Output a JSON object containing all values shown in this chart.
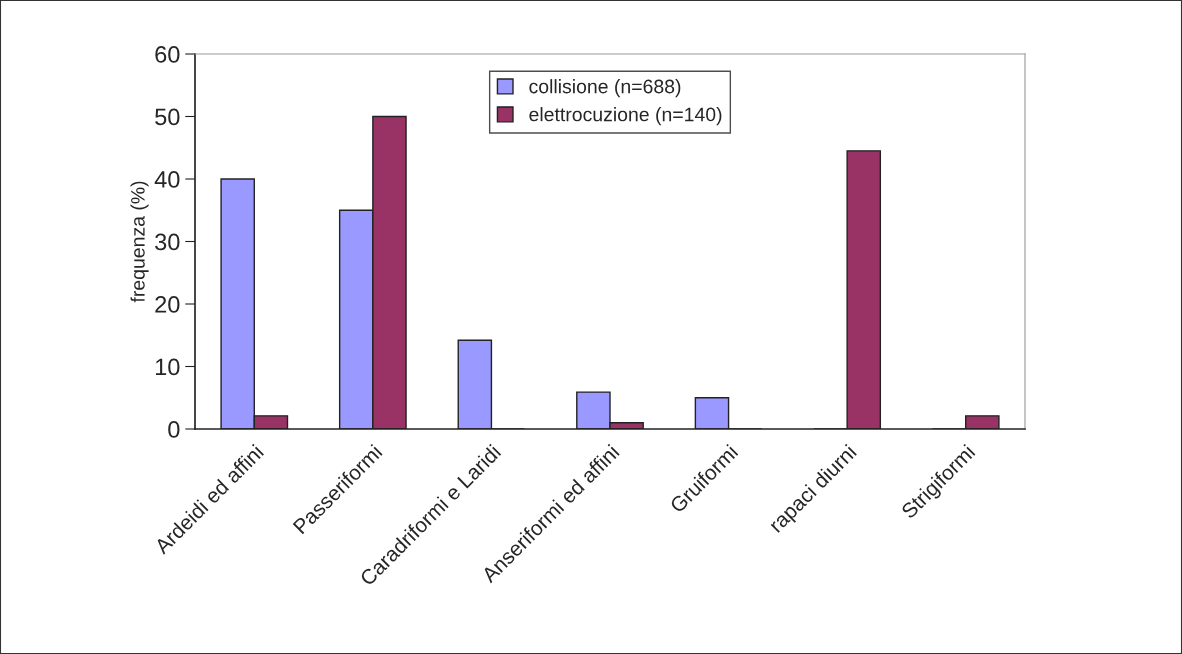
{
  "chart_data": {
    "type": "bar",
    "ylabel": "frequenza (%)",
    "categories": [
      "Ardeidi ed affini",
      "Passeriformi",
      "Caradriformi e Laridi",
      "Anseriformi ed affini",
      "Gruiformi",
      "rapaci diurni",
      "Strigiformi"
    ],
    "series": [
      {
        "name": "collisione (n=688)",
        "color": "#9999ff",
        "values": [
          40,
          35,
          14.2,
          5.9,
          5.0,
          0,
          0
        ]
      },
      {
        "name": "elettrocuzione (n=140)",
        "color": "#993366",
        "values": [
          2.1,
          50,
          0,
          1.0,
          0,
          44.5,
          2.1
        ]
      }
    ],
    "ylim": [
      0,
      60
    ],
    "yticks": [
      0,
      10,
      20,
      30,
      40,
      50,
      60
    ],
    "grid": false,
    "legend": "top"
  }
}
